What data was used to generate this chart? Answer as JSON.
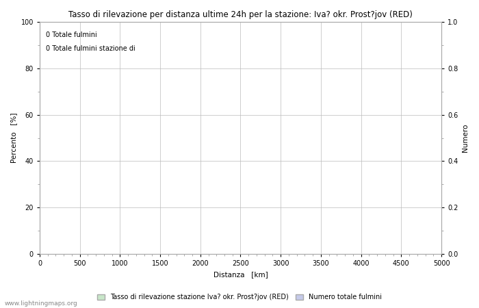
{
  "title": "Tasso di rilevazione per distanza ultime 24h per la stazione: Iva? okr. Prost?jov (RED)",
  "xlabel": "Distanza   [km]",
  "ylabel_left": "Percento   [%]",
  "ylabel_right": "Numero",
  "xlim": [
    0,
    5000
  ],
  "ylim_left": [
    0,
    100
  ],
  "ylim_right": [
    0,
    1.0
  ],
  "xticks": [
    0,
    500,
    1000,
    1500,
    2000,
    2500,
    3000,
    3500,
    4000,
    4500,
    5000
  ],
  "yticks_left": [
    0,
    20,
    40,
    60,
    80,
    100
  ],
  "yticks_right": [
    0.0,
    0.2,
    0.4,
    0.6,
    0.8,
    1.0
  ],
  "annotation_line1": "0 Totale fulmini",
  "annotation_line2": "0 Totale fulmini stazione di",
  "legend_label1": "Tasso di rilevazione stazione Iva? okr. Prost?jov (RED)",
  "legend_label2": "Numero totale fulmini",
  "legend_color1": "#c8e6c9",
  "legend_color2": "#c5cae9",
  "grid_color": "#bbbbbb",
  "background_color": "#ffffff",
  "text_color": "#000000",
  "watermark": "www.lightningmaps.org",
  "title_fontsize": 8.5,
  "axis_fontsize": 7.5,
  "tick_fontsize": 7,
  "annotation_fontsize": 7,
  "legend_fontsize": 7,
  "watermark_fontsize": 6.5
}
